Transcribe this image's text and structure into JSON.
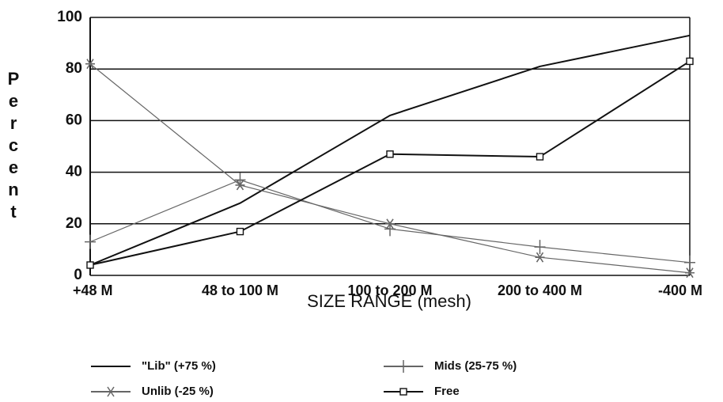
{
  "chart_data": {
    "type": "line",
    "ylabel": "Percent",
    "xlabel": "SIZE RANGE (mesh)",
    "categories": [
      "+48 M",
      "48 to 100 M",
      "100 to 200 M",
      "200 to 400 M",
      "-400 M"
    ],
    "ylim": [
      0,
      100
    ],
    "yticks": [
      0,
      20,
      40,
      60,
      80,
      100
    ],
    "grid": true,
    "series": [
      {
        "name": "\"Lib\" (+75 %)",
        "color": "#111111",
        "marker": "none",
        "values": [
          4,
          28,
          62,
          81,
          93
        ]
      },
      {
        "name": "Mids (25-75 %)",
        "color": "#666666",
        "marker": "plus",
        "values": [
          13,
          37,
          18,
          11,
          5
        ]
      },
      {
        "name": "Unlib (-25 %)",
        "color": "#666666",
        "marker": "star",
        "values": [
          82,
          35,
          20,
          7,
          1
        ]
      },
      {
        "name": "Free",
        "color": "#111111",
        "marker": "square",
        "values": [
          4,
          17,
          47,
          46,
          83
        ]
      }
    ]
  }
}
